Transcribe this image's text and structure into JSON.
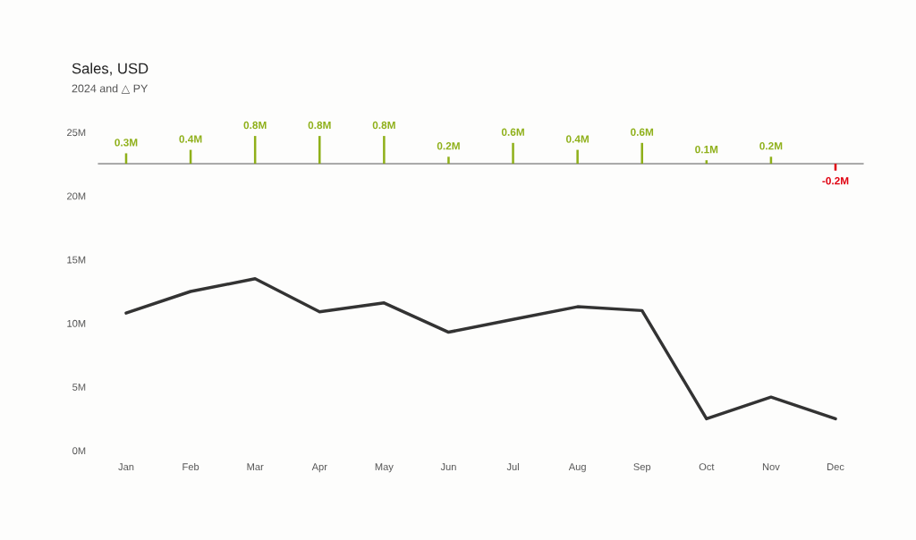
{
  "chart_data": [
    {
      "type": "line",
      "title": "Sales, USD",
      "subtitle": "2024 and △ PY",
      "categories": [
        "Jan",
        "Feb",
        "Mar",
        "Apr",
        "May",
        "Jun",
        "Jul",
        "Aug",
        "Sep",
        "Oct",
        "Nov",
        "Dec"
      ],
      "series": [
        {
          "color": "#333333",
          "values": [
            10.8,
            12.5,
            13.5,
            10.9,
            11.6,
            9.3,
            10.3,
            11.3,
            11.0,
            2.5,
            4.2,
            2.5
          ]
        }
      ],
      "ylim": [
        0,
        25
      ],
      "yticks": [
        {
          "value": 0,
          "label": "0M"
        },
        {
          "value": 5,
          "label": "5M"
        },
        {
          "value": 10,
          "label": "10M"
        },
        {
          "value": 15,
          "label": "15M"
        },
        {
          "value": 20,
          "label": "20M"
        },
        {
          "value": 25,
          "label": "25M"
        }
      ],
      "grid": false,
      "line_style": "solid"
    },
    {
      "type": "bar",
      "values": [
        0.3,
        0.4,
        0.8,
        0.8,
        0.8,
        0.2,
        0.6,
        0.4,
        0.6,
        0.1,
        0.2,
        -0.2
      ],
      "colors": [
        "#8fb01a",
        "#8fb01a",
        "#8fb01a",
        "#8fb01a",
        "#8fb01a",
        "#8fb01a",
        "#8fb01a",
        "#8fb01a",
        "#8fb01a",
        "#8fb01a",
        "#8fb01a",
        "#e0000f"
      ],
      "value_labels": [
        "0.3M",
        "0.4M",
        "0.8M",
        "0.8M",
        "0.8M",
        "0.2M",
        "0.6M",
        "0.4M",
        "0.6M",
        "0.1M",
        "0.2M",
        "-0.2M"
      ]
    }
  ]
}
